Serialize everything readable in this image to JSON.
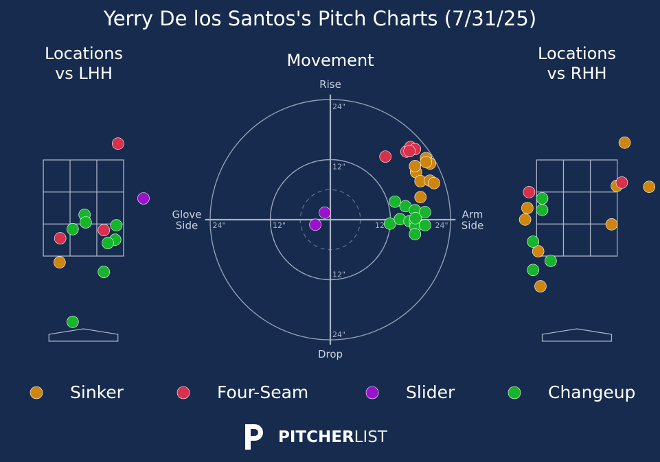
{
  "title": "Yerry De los Santos's Pitch Charts (7/31/25)",
  "logo": {
    "bold": "PITCHER",
    "light": "LIST"
  },
  "chart_data": [
    {
      "type": "scatter",
      "title": "Locations\nvs LHH",
      "xlim": [
        -1.4,
        1.4
      ],
      "ylim": [
        -0.5,
        4.5
      ],
      "zone": {
        "x": [
          -0.708,
          0.708
        ],
        "y": [
          1.5,
          3.5
        ]
      },
      "series": [
        {
          "name": "Sinker",
          "color": "#cf860f",
          "x": [
            -0.42
          ],
          "values": [
            1.37
          ]
        },
        {
          "name": "Four-Seam",
          "color": "#d9304c",
          "x": [
            0.61,
            0.36,
            -0.41
          ],
          "values": [
            3.84,
            2.04,
            1.87
          ]
        },
        {
          "name": "Slider",
          "color": "#9a12cc",
          "x": [
            1.06
          ],
          "values": [
            2.7
          ]
        },
        {
          "name": "Changeup",
          "color": "#16b52b",
          "x": [
            0.02,
            0.04,
            -0.19,
            0.58,
            0.56,
            0.43,
            0.36,
            -0.19
          ],
          "values": [
            2.36,
            2.2,
            2.06,
            2.14,
            1.84,
            1.77,
            1.17,
            0.13
          ]
        }
      ]
    },
    {
      "type": "scatter",
      "title": "Movement",
      "xlim": [
        -25,
        25
      ],
      "ylim": [
        -25,
        25
      ],
      "top_label": "Rise",
      "bottom_label": "Drop",
      "left_label": "Glove\nSide",
      "right_label": "Arm\nSide",
      "xticks": [
        {
          "value": -24,
          "label": "24\""
        },
        {
          "value": -12,
          "label": "12\""
        },
        {
          "value": 12,
          "label": "12\""
        },
        {
          "value": 24,
          "label": "24\""
        }
      ],
      "yticks": [
        {
          "value": 24,
          "label": "24\""
        },
        {
          "value": 12,
          "label": "12\""
        },
        {
          "value": -12,
          "label": "12\""
        },
        {
          "value": -24,
          "label": "24\""
        }
      ],
      "series": [
        {
          "name": "Sinker",
          "color": "#cf860f",
          "x": [
            19.1,
            19.9,
            17.1,
            16.9,
            19.1,
            18.0,
            19.9,
            20.7,
            18.0
          ],
          "values": [
            12.3,
            11.2,
            9.5,
            10.7,
            11.5,
            7.7,
            7.8,
            7.3,
            4.5
          ]
        },
        {
          "name": "Four-Seam",
          "color": "#d9304c",
          "x": [
            11.0,
            15.2,
            16.0,
            16.9,
            15.8
          ],
          "values": [
            12.6,
            13.6,
            14.5,
            14.1,
            13.7
          ]
        },
        {
          "name": "Slider",
          "color": "#9a12cc",
          "x": [
            -1.1,
            -3.0
          ],
          "values": [
            1.4,
            -1.0
          ]
        },
        {
          "name": "Changeup",
          "color": "#16b52b",
          "x": [
            12.9,
            15.0,
            16.9,
            18.9,
            11.9,
            13.9,
            15.8,
            16.9,
            17.0,
            18.9,
            16.9,
            17.0
          ],
          "values": [
            3.6,
            2.7,
            1.9,
            1.5,
            -0.8,
            0.1,
            -0.3,
            -0.3,
            -1.4,
            -1.1,
            -2.9,
            0.3
          ]
        }
      ]
    },
    {
      "type": "scatter",
      "title": "Locations\nvs RHH",
      "xlim": [
        -1.4,
        1.4
      ],
      "ylim": [
        -0.5,
        4.5
      ],
      "zone": {
        "x": [
          -0.708,
          0.708
        ],
        "y": [
          1.5,
          3.5
        ]
      },
      "series": [
        {
          "name": "Sinker",
          "color": "#cf860f",
          "x": [
            0.84,
            0.7,
            1.27,
            0.61,
            -0.87,
            -0.91,
            -0.68,
            -0.64
          ],
          "values": [
            3.86,
            2.96,
            2.94,
            2.16,
            2.5,
            2.26,
            1.6,
            0.87
          ]
        },
        {
          "name": "Four-Seam",
          "color": "#d9304c",
          "x": [
            0.79,
            -0.84
          ],
          "values": [
            3.03,
            2.83
          ]
        },
        {
          "name": "Slider",
          "color": "#9a12cc",
          "x": [],
          "values": []
        },
        {
          "name": "Changeup",
          "color": "#16b52b",
          "x": [
            -0.61,
            -0.61,
            -0.77,
            -0.46,
            -0.77
          ],
          "values": [
            2.7,
            2.46,
            1.8,
            1.4,
            1.21
          ]
        }
      ]
    }
  ]
}
